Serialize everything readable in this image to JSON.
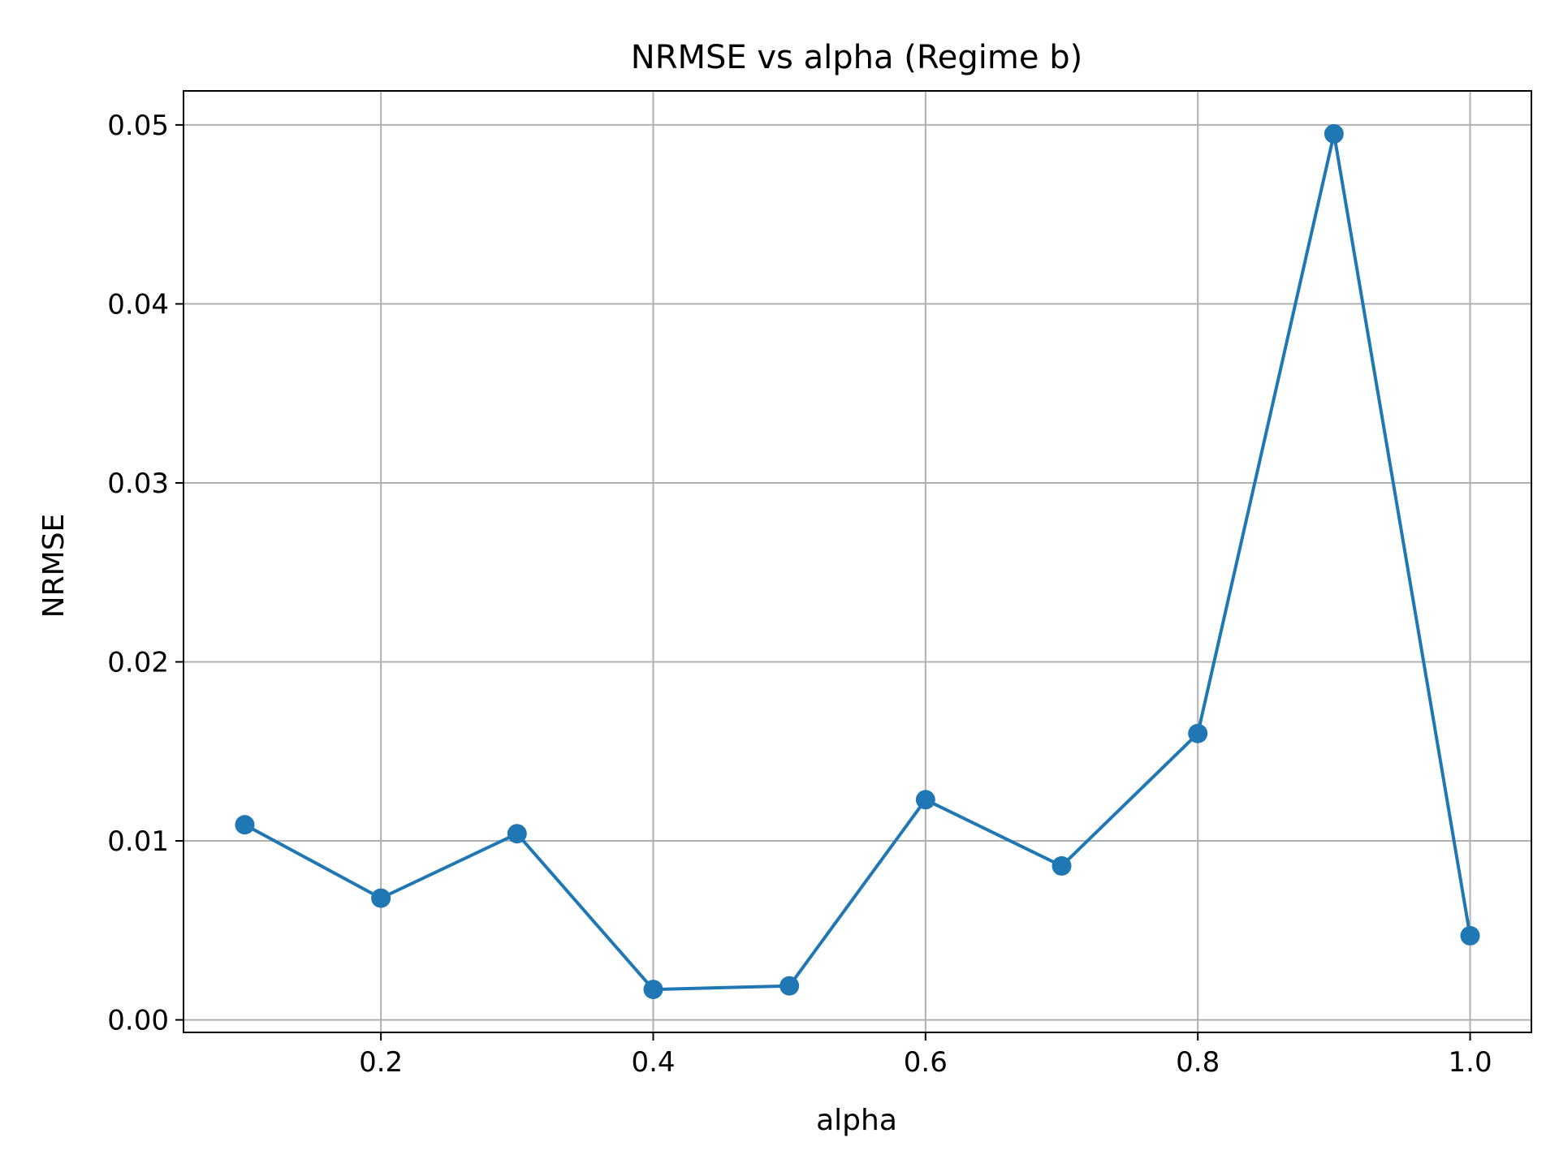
{
  "chart_data": {
    "type": "line",
    "title": "NRMSE vs alpha (Regime b)",
    "xlabel": "alpha",
    "ylabel": "NRMSE",
    "xlim": [
      0.055,
      1.045
    ],
    "ylim": [
      -0.0007,
      0.0519
    ],
    "grid": true,
    "x_ticks": [
      0.2,
      0.4,
      0.6,
      0.8,
      1.0
    ],
    "x_tick_labels": [
      "0.2",
      "0.4",
      "0.6",
      "0.8",
      "1.0"
    ],
    "y_ticks": [
      0.0,
      0.01,
      0.02,
      0.03,
      0.04,
      0.05
    ],
    "y_tick_labels": [
      "0.00",
      "0.01",
      "0.02",
      "0.03",
      "0.04",
      "0.05"
    ],
    "series": [
      {
        "color": "#1f77b4",
        "marker": "circle",
        "x": [
          0.1,
          0.2,
          0.3,
          0.4,
          0.5,
          0.6,
          0.7,
          0.8,
          0.9,
          1.0
        ],
        "y": [
          0.0109,
          0.0068,
          0.0104,
          0.0017,
          0.0019,
          0.0123,
          0.0086,
          0.016,
          0.0495,
          0.0047
        ]
      }
    ]
  }
}
